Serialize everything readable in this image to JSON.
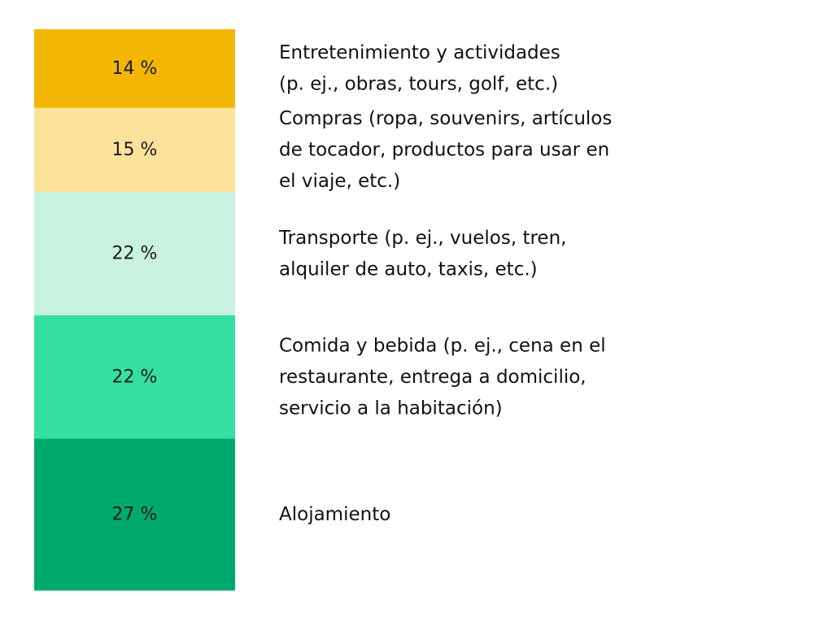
{
  "chart_data": {
    "type": "bar",
    "orientation": "stacked-vertical",
    "title": "",
    "unit": "%",
    "segments": [
      {
        "value": 14,
        "label": "14 %",
        "color": "#f2b705",
        "description": [
          "Entretenimiento y actividades",
          "(p. ej., obras, tours, golf, etc.)"
        ]
      },
      {
        "value": 15,
        "label": "15 %",
        "color": "#fde29b",
        "description": [
          "Compras (ropa, souvenirs, artículos",
          "de tocador, productos para usar en",
          "el viaje, etc.)"
        ]
      },
      {
        "value": 22,
        "label": "22 %",
        "color": "#c8f1df",
        "description": [
          "Transporte (p. ej., vuelos, tren,",
          "alquiler de auto, taxis, etc.)"
        ]
      },
      {
        "value": 22,
        "label": "22 %",
        "color": "#34e0a1",
        "description": [
          "Comida y bebida (p. ej., cena en el",
          "restaurante, entrega a domicilio,",
          "servicio a la habitación)"
        ]
      },
      {
        "value": 27,
        "label": "27 %",
        "color": "#00aa6c",
        "description": [
          "Alojamiento"
        ]
      }
    ]
  }
}
